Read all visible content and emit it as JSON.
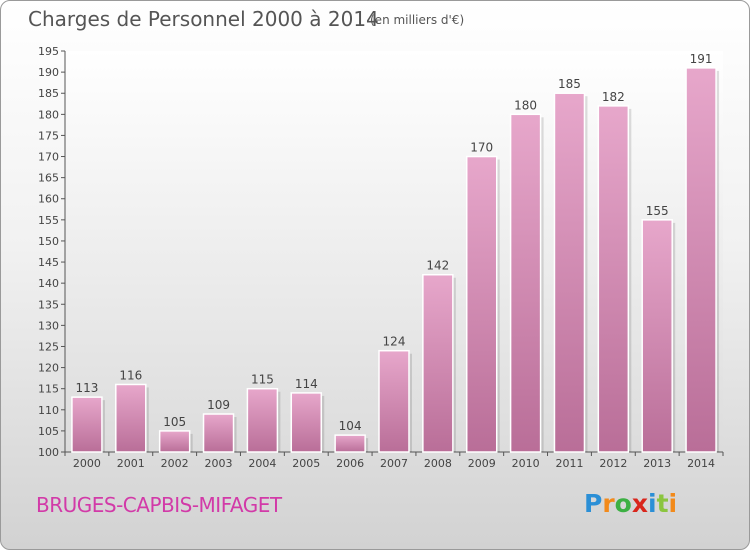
{
  "chart_data": {
    "type": "bar",
    "title": "Charges de Personnel 2000 à 2014",
    "subtitle": "(en milliers d'€)",
    "categories": [
      "2000",
      "2001",
      "2002",
      "2003",
      "2004",
      "2005",
      "2006",
      "2007",
      "2008",
      "2009",
      "2010",
      "2011",
      "2012",
      "2013",
      "2014"
    ],
    "values": [
      113,
      116,
      105,
      109,
      115,
      114,
      104,
      124,
      142,
      170,
      180,
      185,
      182,
      155,
      191
    ],
    "ylim": [
      100,
      195
    ],
    "yticks": [
      100,
      105,
      110,
      115,
      120,
      125,
      130,
      135,
      140,
      145,
      150,
      155,
      160,
      165,
      170,
      175,
      180,
      185,
      190,
      195
    ],
    "grid": false,
    "bar_color": "#d88cba"
  },
  "place_name": "BRUGES-CAPBIS-MIFAGET",
  "logo": {
    "letters": [
      "P",
      "r",
      "o",
      "x",
      "i",
      "t",
      "i"
    ],
    "colors": [
      "#2b8fd6",
      "#f28a1b",
      "#3cb043",
      "#d9261c",
      "#2b8fd6",
      "#8bc53f",
      "#f28a1b"
    ]
  }
}
